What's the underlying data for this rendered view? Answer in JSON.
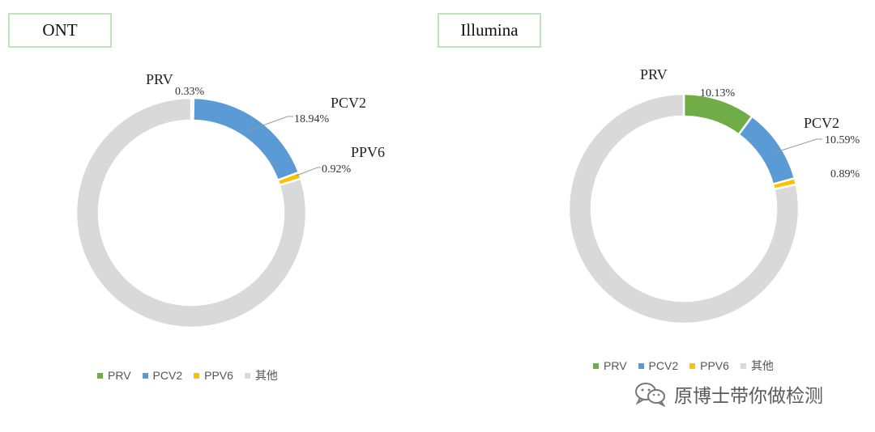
{
  "colors": {
    "PRV": "#70ad47",
    "PCV2": "#5b9bd5",
    "PPV6": "#ffc000",
    "other": "#d9d9d9"
  },
  "chart_data": [
    {
      "type": "pie",
      "title": "ONT",
      "series": [
        {
          "name": "PRV",
          "value": 0.33,
          "label": "PRV",
          "pct": "0.33%"
        },
        {
          "name": "PCV2",
          "value": 18.94,
          "label": "PCV2",
          "pct": "18.94%"
        },
        {
          "name": "PPV6",
          "value": 0.92,
          "label": "PPV6",
          "pct": "0.92%"
        },
        {
          "name": "其他",
          "value": 79.81
        }
      ],
      "legend": [
        "PRV",
        "PCV2",
        "PPV6",
        "其他"
      ]
    },
    {
      "type": "pie",
      "title": "Illumina",
      "series": [
        {
          "name": "PRV",
          "value": 10.13,
          "label": "PRV",
          "pct": "10.13%"
        },
        {
          "name": "PCV2",
          "value": 10.59,
          "label": "PCV2",
          "pct": "10.59%"
        },
        {
          "name": "PPV6",
          "value": 0.89,
          "label": "",
          "pct": "0.89%"
        },
        {
          "name": "其他",
          "value": 78.39
        }
      ],
      "legend": [
        "PRV",
        "PCV2",
        "PPV6",
        "其他"
      ]
    }
  ],
  "watermark": "原博士带你做检测"
}
